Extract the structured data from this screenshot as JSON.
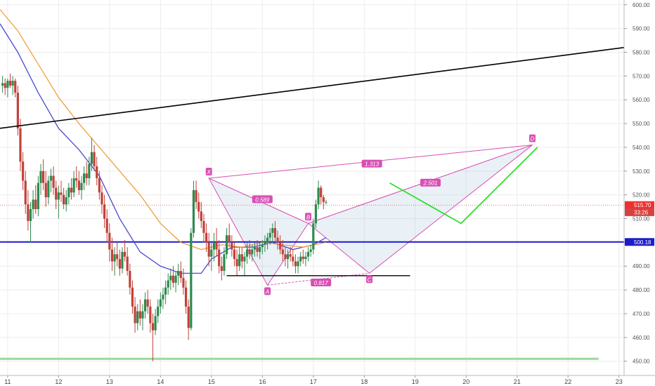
{
  "chart_data": {
    "type": "candlestick",
    "x_axis": {
      "tick_labels": [
        "11",
        "12",
        "13",
        "14",
        "15",
        "16",
        "17",
        "18",
        "19",
        "20",
        "21",
        "22",
        "23"
      ],
      "range": [
        10.85,
        23.1
      ]
    },
    "y_axis": {
      "tick_labels": [
        "450.00",
        "460.00",
        "470.00",
        "480.00",
        "490.00",
        "500.00",
        "510.00",
        "520.00",
        "530.00",
        "540.00",
        "550.00",
        "560.00",
        "570.00",
        "580.00",
        "590.00",
        "600.00"
      ],
      "range": [
        444,
        602
      ],
      "position": "right"
    },
    "grid": true,
    "candles": [
      [
        10.9,
        566,
        570,
        563,
        567
      ],
      [
        10.95,
        567,
        569,
        562,
        565
      ],
      [
        11.0,
        565,
        569,
        561,
        568
      ],
      [
        11.05,
        568,
        571,
        565,
        566
      ],
      [
        11.1,
        566,
        570,
        562,
        568
      ],
      [
        11.15,
        568,
        569,
        561,
        563
      ],
      [
        11.2,
        563,
        566,
        545,
        548
      ],
      [
        11.25,
        548,
        552,
        530,
        534
      ],
      [
        11.3,
        534,
        538,
        522,
        526
      ],
      [
        11.35,
        526,
        530,
        512,
        516
      ],
      [
        11.4,
        516,
        522,
        505,
        509
      ],
      [
        11.45,
        509,
        517,
        500,
        514
      ],
      [
        11.5,
        514,
        522,
        510,
        518
      ],
      [
        11.55,
        518,
        524,
        512,
        514
      ],
      [
        11.6,
        514,
        528,
        511,
        525
      ],
      [
        11.65,
        525,
        533,
        520,
        530
      ],
      [
        11.7,
        530,
        535,
        522,
        525
      ],
      [
        11.75,
        525,
        530,
        515,
        519
      ],
      [
        11.8,
        519,
        528,
        516,
        526
      ],
      [
        11.85,
        526,
        531,
        521,
        528
      ],
      [
        11.9,
        528,
        532,
        520,
        523
      ],
      [
        11.95,
        523,
        526,
        514,
        518
      ],
      [
        12.0,
        518,
        524,
        510,
        521
      ],
      [
        12.05,
        521,
        526,
        517,
        520
      ],
      [
        12.1,
        520,
        523,
        514,
        516
      ],
      [
        12.15,
        516,
        522,
        513,
        519
      ],
      [
        12.2,
        519,
        525,
        516,
        523
      ],
      [
        12.25,
        523,
        527,
        518,
        521
      ],
      [
        12.3,
        521,
        530,
        519,
        527
      ],
      [
        12.35,
        527,
        532,
        523,
        526
      ],
      [
        12.4,
        526,
        530,
        520,
        522
      ],
      [
        12.45,
        522,
        528,
        518,
        525
      ],
      [
        12.5,
        525,
        532,
        522,
        529
      ],
      [
        12.55,
        529,
        534,
        524,
        527
      ],
      [
        12.6,
        527,
        536,
        524,
        533
      ],
      [
        12.65,
        533,
        544,
        530,
        538
      ],
      [
        12.7,
        538,
        541,
        530,
        532
      ],
      [
        12.75,
        532,
        536,
        524,
        527
      ],
      [
        12.8,
        527,
        530,
        518,
        521
      ],
      [
        12.85,
        521,
        524,
        512,
        516
      ],
      [
        12.9,
        516,
        520,
        506,
        510
      ],
      [
        12.95,
        510,
        514,
        500,
        504
      ],
      [
        13.0,
        504,
        508,
        492,
        497
      ],
      [
        13.05,
        497,
        502,
        488,
        492
      ],
      [
        13.1,
        492,
        498,
        486,
        495
      ],
      [
        13.15,
        495,
        500,
        490,
        493
      ],
      [
        13.2,
        493,
        497,
        486,
        489
      ],
      [
        13.25,
        489,
        498,
        487,
        496
      ],
      [
        13.3,
        496,
        501,
        492,
        494
      ],
      [
        13.35,
        494,
        498,
        486,
        488
      ],
      [
        13.4,
        488,
        491,
        478,
        481
      ],
      [
        13.45,
        481,
        484,
        470,
        473
      ],
      [
        13.5,
        473,
        477,
        462,
        466
      ],
      [
        13.55,
        466,
        474,
        463,
        471
      ],
      [
        13.6,
        471,
        476,
        465,
        468
      ],
      [
        13.65,
        468,
        474,
        463,
        471
      ],
      [
        13.7,
        471,
        479,
        468,
        476
      ],
      [
        13.75,
        476,
        480,
        470,
        473
      ],
      [
        13.8,
        473,
        476,
        462,
        466
      ],
      [
        13.85,
        466,
        470,
        450,
        463
      ],
      [
        13.9,
        463,
        472,
        461,
        469
      ],
      [
        13.95,
        469,
        476,
        466,
        473
      ],
      [
        14.0,
        473,
        479,
        470,
        476
      ],
      [
        14.05,
        476,
        481,
        472,
        478
      ],
      [
        14.1,
        478,
        484,
        474,
        481
      ],
      [
        14.15,
        481,
        487,
        478,
        484
      ],
      [
        14.2,
        484,
        489,
        480,
        486
      ],
      [
        14.25,
        486,
        490,
        481,
        483
      ],
      [
        14.3,
        483,
        488,
        479,
        486
      ],
      [
        14.35,
        486,
        491,
        482,
        488
      ],
      [
        14.4,
        488,
        492,
        483,
        485
      ],
      [
        14.45,
        485,
        489,
        478,
        481
      ],
      [
        14.5,
        481,
        484,
        470,
        473
      ],
      [
        14.55,
        473,
        476,
        459,
        464
      ],
      [
        14.6,
        464,
        506,
        463,
        504
      ],
      [
        14.65,
        504,
        526,
        502,
        522
      ],
      [
        14.7,
        522,
        526,
        514,
        517
      ],
      [
        14.75,
        517,
        521,
        510,
        513
      ],
      [
        14.8,
        513,
        517,
        506,
        509
      ],
      [
        14.85,
        509,
        512,
        500,
        504
      ],
      [
        14.9,
        504,
        508,
        496,
        500
      ],
      [
        14.95,
        500,
        504,
        490,
        494
      ],
      [
        15.0,
        494,
        500,
        488,
        497
      ],
      [
        15.05,
        497,
        504,
        492,
        500
      ],
      [
        15.1,
        500,
        506,
        494,
        497
      ],
      [
        15.15,
        497,
        501,
        487,
        490
      ],
      [
        15.2,
        490,
        494,
        484,
        488
      ],
      [
        15.25,
        488,
        498,
        486,
        495
      ],
      [
        15.3,
        495,
        506,
        493,
        503
      ],
      [
        15.35,
        503,
        508,
        498,
        500
      ],
      [
        15.4,
        500,
        503,
        494,
        497
      ],
      [
        15.45,
        497,
        500,
        490,
        493
      ],
      [
        15.5,
        493,
        497,
        486,
        490
      ],
      [
        15.55,
        490,
        498,
        488,
        495
      ],
      [
        15.6,
        495,
        498,
        489,
        492
      ],
      [
        15.65,
        492,
        496,
        486,
        494
      ],
      [
        15.7,
        494,
        500,
        491,
        497
      ],
      [
        15.75,
        497,
        501,
        493,
        495
      ],
      [
        15.8,
        495,
        499,
        492,
        497
      ],
      [
        15.85,
        497,
        500,
        494,
        498
      ],
      [
        15.9,
        498,
        501,
        494,
        496
      ],
      [
        15.95,
        496,
        500,
        493,
        498
      ],
      [
        16.0,
        498,
        501,
        495,
        499
      ],
      [
        16.05,
        499,
        503,
        496,
        500
      ],
      [
        16.1,
        500,
        504,
        497,
        502
      ],
      [
        16.15,
        502,
        506,
        499,
        504
      ],
      [
        16.2,
        504,
        508,
        500,
        506
      ],
      [
        16.25,
        506,
        509,
        500,
        502
      ],
      [
        16.3,
        502,
        505,
        497,
        500
      ],
      [
        16.35,
        500,
        503,
        495,
        497
      ],
      [
        16.4,
        497,
        501,
        492,
        495
      ],
      [
        16.45,
        495,
        498,
        490,
        493
      ],
      [
        16.5,
        493,
        497,
        489,
        495
      ],
      [
        16.55,
        495,
        498,
        492,
        494
      ],
      [
        16.6,
        494,
        497,
        490,
        492
      ],
      [
        16.65,
        492,
        495,
        487,
        490
      ],
      [
        16.7,
        490,
        494,
        487,
        492
      ],
      [
        16.75,
        492,
        496,
        490,
        494
      ],
      [
        16.8,
        494,
        497,
        491,
        493
      ],
      [
        16.85,
        493,
        496,
        490,
        494
      ],
      [
        16.9,
        494,
        498,
        492,
        496
      ],
      [
        16.95,
        496,
        499,
        494,
        497
      ],
      [
        17.0,
        497,
        510,
        495,
        508
      ],
      [
        17.05,
        508,
        518,
        506,
        516
      ],
      [
        17.1,
        516,
        526,
        514,
        523
      ],
      [
        17.15,
        523,
        524,
        516,
        519
      ],
      [
        17.2,
        519,
        520,
        514,
        517
      ],
      [
        17.25,
        517,
        518,
        516,
        517
      ]
    ],
    "series": [
      {
        "name": "",
        "color": "#4a4ad0",
        "points": [
          [
            10.85,
            592
          ],
          [
            11.2,
            580
          ],
          [
            11.6,
            563
          ],
          [
            12.0,
            548
          ],
          [
            12.4,
            539
          ],
          [
            12.8,
            528
          ],
          [
            13.2,
            510
          ],
          [
            13.6,
            496
          ],
          [
            14.0,
            490
          ],
          [
            14.4,
            487
          ],
          [
            14.8,
            487
          ],
          [
            15.0,
            493
          ],
          [
            15.4,
            498
          ],
          [
            15.8,
            498
          ],
          [
            16.2,
            500
          ],
          [
            16.6,
            497
          ],
          [
            17.0,
            499
          ],
          [
            17.25,
            502
          ]
        ]
      },
      {
        "name": "",
        "color": "#f0a040",
        "points": [
          [
            10.85,
            598
          ],
          [
            11.2,
            589
          ],
          [
            11.6,
            575
          ],
          [
            12.0,
            561
          ],
          [
            12.4,
            550
          ],
          [
            12.8,
            540
          ],
          [
            13.2,
            530
          ],
          [
            13.6,
            520
          ],
          [
            14.0,
            508
          ],
          [
            14.4,
            500
          ],
          [
            14.8,
            497
          ],
          [
            15.2,
            499
          ],
          [
            15.6,
            498
          ],
          [
            16.0,
            500
          ],
          [
            16.4,
            499
          ],
          [
            16.8,
            498
          ],
          [
            17.25,
            500
          ]
        ]
      }
    ],
    "lines": [
      {
        "kind": "trend",
        "color": "#000000",
        "points": [
          [
            10.85,
            548
          ],
          [
            23.1,
            582
          ]
        ]
      },
      {
        "kind": "horizontal",
        "color": "#1c1ccc",
        "y": 500.18
      },
      {
        "kind": "horizontal",
        "color": "#9ad89a",
        "y": 451,
        "x_range": [
          10.85,
          22.6
        ]
      },
      {
        "kind": "support",
        "color": "#000000",
        "points": [
          [
            15.3,
            486
          ],
          [
            18.9,
            486
          ]
        ]
      },
      {
        "kind": "projection",
        "color": "#30dd30",
        "points": [
          [
            18.5,
            525
          ],
          [
            19.9,
            508
          ],
          [
            21.4,
            540
          ]
        ]
      }
    ],
    "pattern": {
      "points": [
        {
          "label": "X",
          "x": 14.95,
          "y": 527
        },
        {
          "label": "A",
          "x": 16.1,
          "y": 482
        },
        {
          "label": "B",
          "x": 16.9,
          "y": 508
        },
        {
          "label": "C",
          "x": 18.1,
          "y": 487
        },
        {
          "label": "D",
          "x": 21.3,
          "y": 541
        }
      ],
      "ratios": [
        {
          "text": "0.589",
          "x": 16.0,
          "y": 518
        },
        {
          "text": "0.817",
          "x": 17.15,
          "y": 483
        },
        {
          "text": "1.313",
          "x": 18.15,
          "y": 533
        },
        {
          "text": "2.501",
          "x": 19.3,
          "y": 525
        }
      ]
    },
    "price_tags": [
      {
        "text": "515.70",
        "y": 515.7,
        "color": "#f03030"
      },
      {
        "text": "33:26",
        "y": 512.7,
        "color": "#d84040"
      },
      {
        "text": "500.18",
        "y": 500.18,
        "color": "#1c1ccc"
      }
    ],
    "last_price_line": 515.7
  }
}
